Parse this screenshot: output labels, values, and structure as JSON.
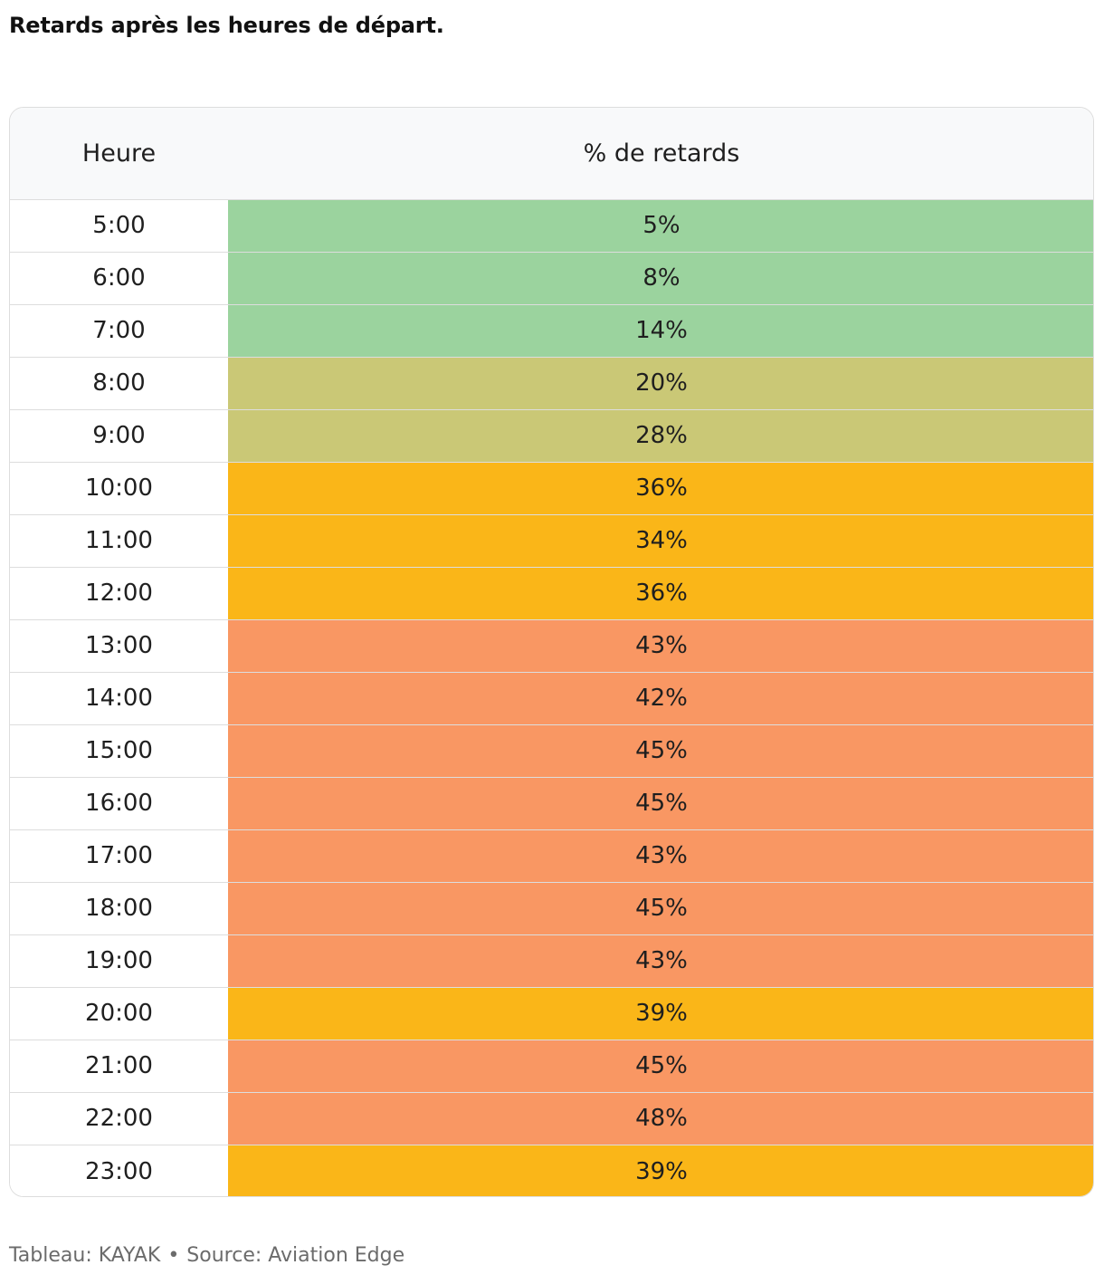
{
  "title": "Retards après les heures de départ.",
  "colors": {
    "low": "#9bd39e",
    "mid_low": "#cac876",
    "mid": "#fab618",
    "high": "#f99763"
  },
  "chart_data": {
    "type": "table",
    "columns": [
      "Heure",
      "% de retards"
    ],
    "rows": [
      {
        "hour": "5:00",
        "pct": "5%",
        "value": 5,
        "level": "low"
      },
      {
        "hour": "6:00",
        "pct": "8%",
        "value": 8,
        "level": "low"
      },
      {
        "hour": "7:00",
        "pct": "14%",
        "value": 14,
        "level": "low"
      },
      {
        "hour": "8:00",
        "pct": "20%",
        "value": 20,
        "level": "mid_low"
      },
      {
        "hour": "9:00",
        "pct": "28%",
        "value": 28,
        "level": "mid_low"
      },
      {
        "hour": "10:00",
        "pct": "36%",
        "value": 36,
        "level": "mid"
      },
      {
        "hour": "11:00",
        "pct": "34%",
        "value": 34,
        "level": "mid"
      },
      {
        "hour": "12:00",
        "pct": "36%",
        "value": 36,
        "level": "mid"
      },
      {
        "hour": "13:00",
        "pct": "43%",
        "value": 43,
        "level": "high"
      },
      {
        "hour": "14:00",
        "pct": "42%",
        "value": 42,
        "level": "high"
      },
      {
        "hour": "15:00",
        "pct": "45%",
        "value": 45,
        "level": "high"
      },
      {
        "hour": "16:00",
        "pct": "45%",
        "value": 45,
        "level": "high"
      },
      {
        "hour": "17:00",
        "pct": "43%",
        "value": 43,
        "level": "high"
      },
      {
        "hour": "18:00",
        "pct": "45%",
        "value": 45,
        "level": "high"
      },
      {
        "hour": "19:00",
        "pct": "43%",
        "value": 43,
        "level": "high"
      },
      {
        "hour": "20:00",
        "pct": "39%",
        "value": 39,
        "level": "mid"
      },
      {
        "hour": "21:00",
        "pct": "45%",
        "value": 45,
        "level": "high"
      },
      {
        "hour": "22:00",
        "pct": "48%",
        "value": 48,
        "level": "high"
      },
      {
        "hour": "23:00",
        "pct": "39%",
        "value": 39,
        "level": "mid"
      }
    ]
  },
  "footer": {
    "credit": "Tableau: KAYAK",
    "separator": "•",
    "source": "Source: Aviation Edge"
  }
}
